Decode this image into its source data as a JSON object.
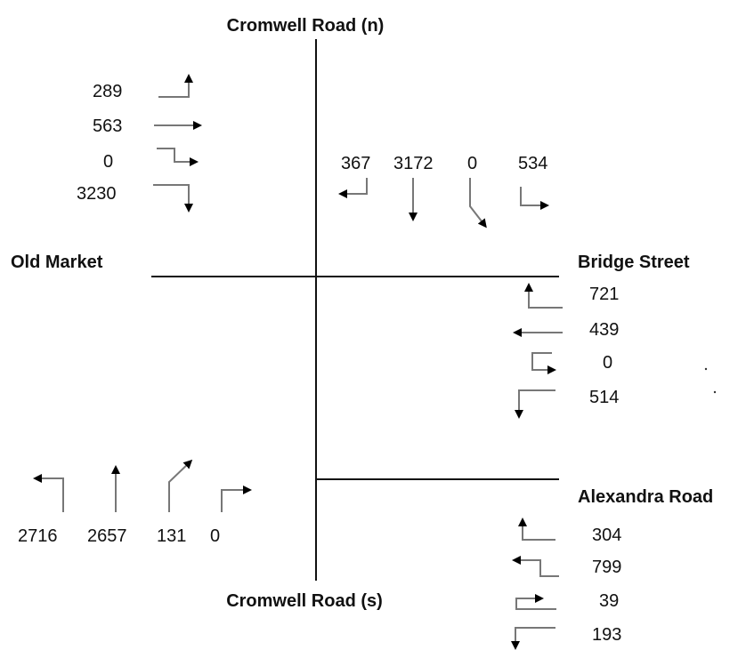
{
  "roads": {
    "north": "Cromwell Road (n)",
    "south": "Cromwell Road (s)",
    "west": "Old Market",
    "east_upper": "Bridge Street",
    "east_lower": "Alexandra Road"
  },
  "movements": {
    "old_market": [
      {
        "count": "289",
        "icon": "left-turn-arrow"
      },
      {
        "count": "563",
        "icon": "straight-arrow"
      },
      {
        "count": "0",
        "icon": "u-turn-arrow"
      },
      {
        "count": "3230",
        "icon": "right-turn-arrow"
      }
    ],
    "cromwell_n": [
      {
        "count": "367",
        "icon": "right-turn-arrow"
      },
      {
        "count": "3172",
        "icon": "straight-arrow"
      },
      {
        "count": "0",
        "icon": "bear-left-arrow"
      },
      {
        "count": "534",
        "icon": "left-turn-arrow"
      }
    ],
    "bridge_street": [
      {
        "count": "721",
        "icon": "right-turn-arrow"
      },
      {
        "count": "439",
        "icon": "straight-arrow"
      },
      {
        "count": "0",
        "icon": "u-turn-arrow"
      },
      {
        "count": "514",
        "icon": "left-turn-arrow"
      }
    ],
    "cromwell_s": [
      {
        "count": "2716",
        "icon": "left-turn-arrow"
      },
      {
        "count": "2657",
        "icon": "straight-arrow"
      },
      {
        "count": "131",
        "icon": "bear-right-arrow"
      },
      {
        "count": "0",
        "icon": "right-turn-arrow"
      }
    ],
    "alexandra_road": [
      {
        "count": "304",
        "icon": "right-turn-arrow"
      },
      {
        "count": "799",
        "icon": "left-turn-arrow"
      },
      {
        "count": "39",
        "icon": "u-turn-arrow"
      },
      {
        "count": "193",
        "icon": "down-turn-arrow"
      }
    ]
  },
  "colors": {
    "line": "#111111",
    "arrow_stem": "#777777",
    "arrow_head": "#000000"
  }
}
